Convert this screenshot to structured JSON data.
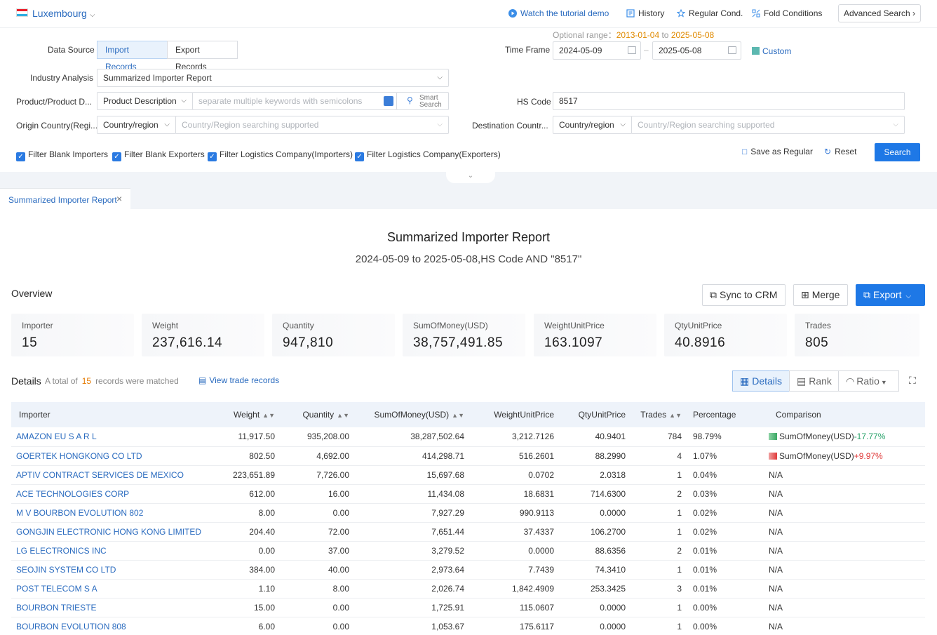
{
  "topbar": {
    "country": "Luxembourg",
    "tutorial": "Watch the tutorial demo",
    "history": "History",
    "regular": "Regular Cond.",
    "fold": "Fold Conditions",
    "advanced": "Advanced Search ›"
  },
  "filters": {
    "data_source_label": "Data Source",
    "import_records": "Import Records",
    "export_records": "Export Records",
    "optional_range_label": "Optional range：",
    "optional_from": "2013-01-04",
    "optional_to_word": " to ",
    "optional_to": "2025-05-08",
    "time_frame_label": "Time Frame",
    "date_from": "2024-05-09",
    "date_to": "2025-05-08",
    "custom": "Custom",
    "industry_label": "Industry Analysis",
    "industry_value": "Summarized Importer Report",
    "product_label": "Product/Product D...",
    "product_type": "Product Description",
    "product_placeholder": "separate multiple keywords with semicolons",
    "smart_search": "Smart Search",
    "hs_label": "HS Code",
    "hs_value": "8517",
    "origin_label": "Origin Country(Regi...",
    "origin_type": "Country/region",
    "origin_placeholder": "Country/Region searching supported",
    "dest_label": "Destination Countr...",
    "dest_type": "Country/region",
    "dest_placeholder": "Country/Region searching supported",
    "cb1": "Filter Blank Importers",
    "cb2": "Filter Blank Exporters",
    "cb3": "Filter Logistics Company(Importers)",
    "cb4": "Filter Logistics Company(Exporters)",
    "save_regular": "Save as Regular",
    "reset": "Reset",
    "search": "Search"
  },
  "tab": {
    "label": "Summarized Importer Report"
  },
  "report": {
    "title": "Summarized Importer Report",
    "subtitle": "2024-05-09 to 2025-05-08,HS Code AND \"8517\"",
    "overview": "Overview",
    "sync": "Sync to CRM",
    "merge": "Merge",
    "export": "Export"
  },
  "cards": [
    {
      "k": "Importer",
      "v": "15"
    },
    {
      "k": "Weight",
      "v": "237,616.14"
    },
    {
      "k": "Quantity",
      "v": "947,810"
    },
    {
      "k": "SumOfMoney(USD)",
      "v": "38,757,491.85"
    },
    {
      "k": "WeightUnitPrice",
      "v": "163.1097"
    },
    {
      "k": "QtyUnitPrice",
      "v": "40.8916"
    },
    {
      "k": "Trades",
      "v": "805"
    }
  ],
  "details": {
    "title": "Details",
    "meta_a": "A total of",
    "count": "15",
    "meta_b": "records were matched",
    "view_trade": "View trade records",
    "view_details": "Details",
    "view_rank": "Rank",
    "view_ratio": "Ratio"
  },
  "table": {
    "headers": [
      "Importer",
      "Weight",
      "Quantity",
      "SumOfMoney(USD)",
      "WeightUnitPrice",
      "QtyUnitPrice",
      "Trades",
      "Percentage",
      "Comparison"
    ],
    "rows": [
      [
        "AMAZON EU S A R L",
        "11,917.50",
        "935,208.00",
        "38,287,502.64",
        "3,212.7126",
        "40.9401",
        "784",
        "98.79%",
        "SumOfMoney(USD)",
        "-17.77%"
      ],
      [
        "GOERTEK HONGKONG CO LTD",
        "802.50",
        "4,692.00",
        "414,298.71",
        "516.2601",
        "88.2990",
        "4",
        "1.07%",
        "SumOfMoney(USD)",
        "+9.97%"
      ],
      [
        "APTIV CONTRACT SERVICES DE MEXICO",
        "223,651.89",
        "7,726.00",
        "15,697.68",
        "0.0702",
        "2.0318",
        "1",
        "0.04%",
        "N/A",
        ""
      ],
      [
        "ACE TECHNOLOGIES CORP",
        "612.00",
        "16.00",
        "11,434.08",
        "18.6831",
        "714.6300",
        "2",
        "0.03%",
        "N/A",
        ""
      ],
      [
        "M V BOURBON EVOLUTION 802",
        "8.00",
        "0.00",
        "7,927.29",
        "990.9113",
        "0.0000",
        "1",
        "0.02%",
        "N/A",
        ""
      ],
      [
        "GONGJIN ELECTRONIC HONG KONG LIMITED",
        "204.40",
        "72.00",
        "7,651.44",
        "37.4337",
        "106.2700",
        "1",
        "0.02%",
        "N/A",
        ""
      ],
      [
        "LG ELECTRONICS INC",
        "0.00",
        "37.00",
        "3,279.52",
        "0.0000",
        "88.6356",
        "2",
        "0.01%",
        "N/A",
        ""
      ],
      [
        "SEOJIN SYSTEM CO LTD",
        "384.00",
        "40.00",
        "2,973.64",
        "7.7439",
        "74.3410",
        "1",
        "0.01%",
        "N/A",
        ""
      ],
      [
        "POST TELECOM S A",
        "1.10",
        "8.00",
        "2,026.74",
        "1,842.4909",
        "253.3425",
        "3",
        "0.01%",
        "N/A",
        ""
      ],
      [
        "BOURBON TRIESTE",
        "15.00",
        "0.00",
        "1,725.91",
        "115.0607",
        "0.0000",
        "1",
        "0.00%",
        "N/A",
        ""
      ],
      [
        "BOURBON EVOLUTION 808",
        "6.00",
        "0.00",
        "1,053.67",
        "175.6117",
        "0.0000",
        "1",
        "0.00%",
        "N/A",
        ""
      ]
    ]
  }
}
